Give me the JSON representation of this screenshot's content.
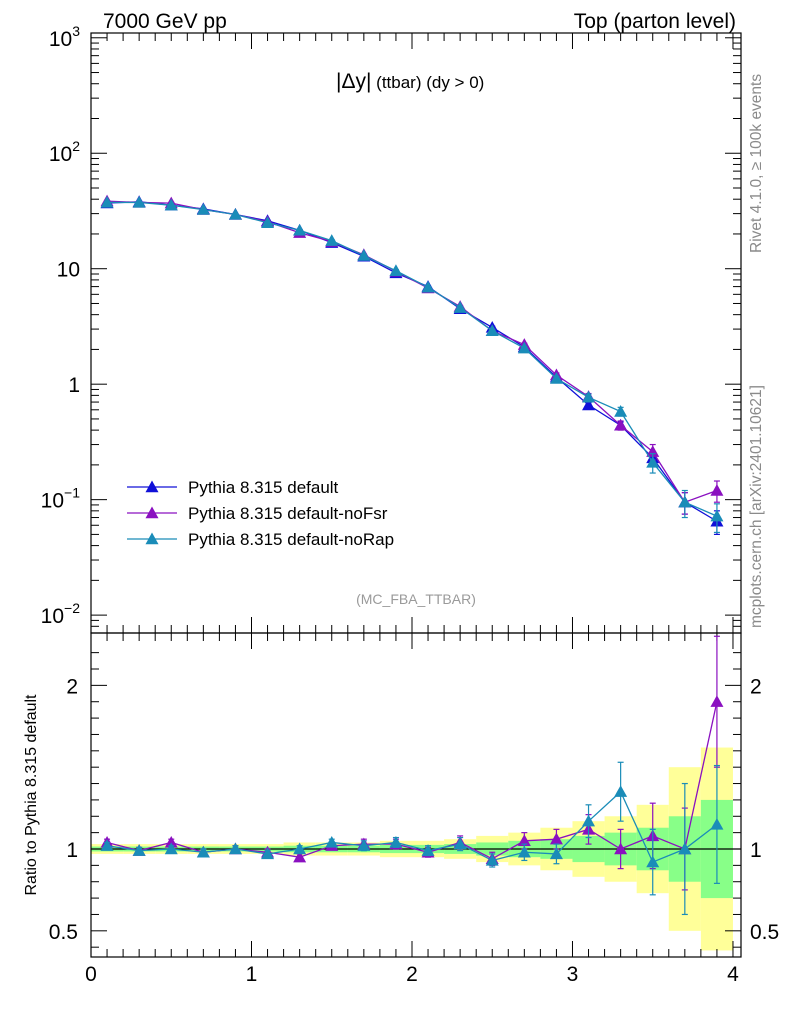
{
  "header": {
    "left": "7000 GeV pp",
    "right": "Top (parton level)"
  },
  "side_labels": {
    "rivet": "Rivet 4.1.0, ≥ 100k events",
    "mcplots": "mcplots.cern.ch [arXiv:2401.10621]"
  },
  "colors": {
    "default": "#1010d8",
    "noFsr": "#8a10c0",
    "noRap": "#1a8cb8",
    "band_inner": "#88ff88",
    "band_outer": "#ffff99"
  },
  "chart_data": [
    {
      "type": "line",
      "title_main": "|Δy|",
      "title_sub": " (ttbar) (dy > 0)",
      "analysis_tag": "(MC_FBA_TTBAR)",
      "xlim": [
        0,
        4.05
      ],
      "yscale": "log",
      "ylim": [
        0.007,
        1100
      ],
      "y_ticks": [
        {
          "value": 0.01,
          "base": "10",
          "exp": "−2"
        },
        {
          "value": 0.1,
          "base": "10",
          "exp": "−1"
        },
        {
          "value": 1,
          "base": "1",
          "exp": ""
        },
        {
          "value": 10,
          "base": "10",
          "exp": ""
        },
        {
          "value": 100,
          "base": "10",
          "exp": "2"
        },
        {
          "value": 1000,
          "base": "10",
          "exp": "3"
        }
      ],
      "x": [
        0.1,
        0.3,
        0.5,
        0.7,
        0.9,
        1.1,
        1.3,
        1.5,
        1.7,
        1.9,
        2.1,
        2.3,
        2.5,
        2.7,
        2.9,
        3.1,
        3.3,
        3.5,
        3.7,
        3.9
      ],
      "legend_position": "lower-left",
      "series": [
        {
          "name": "Pythia 8.315 default",
          "key": "default",
          "values": [
            37.0,
            38.0,
            35.5,
            33.0,
            29.5,
            26.0,
            21.5,
            16.8,
            12.8,
            9.2,
            7.0,
            4.5,
            3.1,
            2.1,
            1.15,
            0.66,
            0.44,
            0.23,
            0.095,
            0.065
          ],
          "errors": [
            0.5,
            0.5,
            0.5,
            0.4,
            0.4,
            0.3,
            0.3,
            0.3,
            0.2,
            0.2,
            0.15,
            0.1,
            0.08,
            0.06,
            0.04,
            0.03,
            0.03,
            0.03,
            0.02,
            0.015
          ]
        },
        {
          "name": "Pythia 8.315 default-noFsr",
          "key": "noFsr",
          "values": [
            38.5,
            37.5,
            37.0,
            32.5,
            29.5,
            25.5,
            20.5,
            17.2,
            13.2,
            9.5,
            6.8,
            4.7,
            2.9,
            2.2,
            1.2,
            0.78,
            0.44,
            0.26,
            0.095,
            0.12
          ],
          "errors": [
            0.5,
            0.5,
            0.5,
            0.4,
            0.4,
            0.3,
            0.3,
            0.3,
            0.2,
            0.2,
            0.15,
            0.1,
            0.08,
            0.06,
            0.05,
            0.05,
            0.04,
            0.04,
            0.02,
            0.025
          ]
        },
        {
          "name": "Pythia 8.315 default-noRap",
          "key": "noRap",
          "values": [
            37.5,
            37.5,
            35.5,
            32.5,
            29.5,
            25.0,
            21.5,
            17.5,
            13.0,
            9.6,
            6.9,
            4.6,
            2.9,
            2.05,
            1.12,
            0.77,
            0.58,
            0.21,
            0.095,
            0.072
          ],
          "errors": [
            0.5,
            0.5,
            0.5,
            0.4,
            0.4,
            0.3,
            0.3,
            0.3,
            0.2,
            0.2,
            0.15,
            0.1,
            0.08,
            0.06,
            0.05,
            0.05,
            0.05,
            0.04,
            0.025,
            0.02
          ]
        }
      ]
    },
    {
      "type": "line",
      "ylabel": "Ratio to Pythia 8.315 default",
      "xlim": [
        0,
        4.05
      ],
      "ylim": [
        0.34,
        2.32
      ],
      "y_ticks": [
        0.5,
        1,
        2
      ],
      "y_tick_labels": [
        "0.5",
        "1",
        "2"
      ],
      "x_ticks": [
        0,
        1,
        2,
        3,
        4
      ],
      "x_tick_labels": [
        "0",
        "1",
        "2",
        "3",
        "4"
      ],
      "x": [
        0.1,
        0.3,
        0.5,
        0.7,
        0.9,
        1.1,
        1.3,
        1.5,
        1.7,
        1.9,
        2.1,
        2.3,
        2.5,
        2.7,
        2.9,
        3.1,
        3.3,
        3.5,
        3.7,
        3.9
      ],
      "bin_edges": [
        0.0,
        0.2,
        0.4,
        0.6,
        0.8,
        1.0,
        1.2,
        1.4,
        1.6,
        1.8,
        2.0,
        2.2,
        2.4,
        2.6,
        2.8,
        3.0,
        3.2,
        3.4,
        3.6,
        3.8,
        4.0
      ],
      "band_inner": [
        0.015,
        0.015,
        0.015,
        0.015,
        0.015,
        0.015,
        0.02,
        0.02,
        0.02,
        0.025,
        0.025,
        0.03,
        0.04,
        0.05,
        0.06,
        0.08,
        0.1,
        0.13,
        0.2,
        0.3
      ],
      "band_outer": [
        0.03,
        0.03,
        0.03,
        0.03,
        0.03,
        0.03,
        0.04,
        0.04,
        0.04,
        0.05,
        0.05,
        0.06,
        0.08,
        0.1,
        0.13,
        0.17,
        0.2,
        0.27,
        0.5,
        0.62
      ],
      "series": [
        {
          "name": "Pythia 8.315 default-noFsr",
          "key": "noFsr",
          "values": [
            1.04,
            0.99,
            1.04,
            0.98,
            1.0,
            0.98,
            0.95,
            1.02,
            1.03,
            1.03,
            0.98,
            1.04,
            0.94,
            1.05,
            1.06,
            1.12,
            1.0,
            1.08,
            1.0,
            1.9
          ],
          "errors": [
            0.02,
            0.02,
            0.02,
            0.02,
            0.02,
            0.02,
            0.02,
            0.02,
            0.03,
            0.03,
            0.03,
            0.04,
            0.04,
            0.05,
            0.06,
            0.09,
            0.12,
            0.2,
            0.25,
            0.4
          ]
        },
        {
          "name": "Pythia 8.315 default-noRap",
          "key": "noRap",
          "values": [
            1.02,
            0.99,
            1.0,
            0.98,
            1.0,
            0.97,
            1.0,
            1.04,
            1.02,
            1.04,
            0.99,
            1.03,
            0.93,
            0.98,
            0.97,
            1.17,
            1.35,
            0.92,
            1.0,
            1.15
          ],
          "errors": [
            0.02,
            0.02,
            0.02,
            0.02,
            0.02,
            0.02,
            0.02,
            0.02,
            0.03,
            0.03,
            0.03,
            0.04,
            0.04,
            0.05,
            0.06,
            0.1,
            0.18,
            0.2,
            0.4,
            0.36
          ]
        }
      ]
    }
  ]
}
